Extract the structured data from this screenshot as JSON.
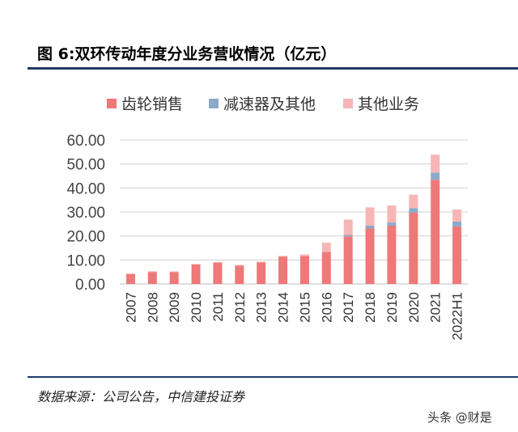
{
  "title": "图 6:双环传动年度分业务营收情况（亿元）",
  "source": "数据来源：公司公告，中信建投证券",
  "watermark": "头条 @财是",
  "chart_data": {
    "type": "bar",
    "stacked": true,
    "categories": [
      "2007",
      "2008",
      "2009",
      "2010",
      "2011",
      "2012",
      "2013",
      "2014",
      "2015",
      "2016",
      "2017",
      "2018",
      "2019",
      "2020",
      "2021",
      "2022H1"
    ],
    "series": [
      {
        "name": "齿轮销售",
        "color": "#ef7878",
        "values": [
          4.2,
          5.0,
          5.0,
          8.1,
          8.9,
          7.7,
          9.0,
          11.4,
          11.6,
          13.3,
          19.8,
          23.1,
          24.3,
          29.7,
          43.4,
          23.9
        ]
      },
      {
        "name": "减速器及其他",
        "color": "#8caac8",
        "values": [
          0,
          0,
          0,
          0,
          0,
          0,
          0,
          0,
          0,
          0,
          0.6,
          1.2,
          1.3,
          1.9,
          3.0,
          2.1
        ]
      },
      {
        "name": "其他业务",
        "color": "#f6b6b6",
        "values": [
          0,
          0.3,
          0.2,
          0.2,
          0.2,
          0.2,
          0.3,
          0.3,
          0.7,
          3.9,
          6.4,
          7.6,
          7.1,
          5.6,
          7.5,
          5.0
        ]
      }
    ],
    "ylim": [
      0,
      60
    ],
    "yticks": [
      "0.00",
      "10.00",
      "20.00",
      "30.00",
      "40.00",
      "50.00",
      "60.00"
    ],
    "legend_position": "top",
    "grid": true
  }
}
